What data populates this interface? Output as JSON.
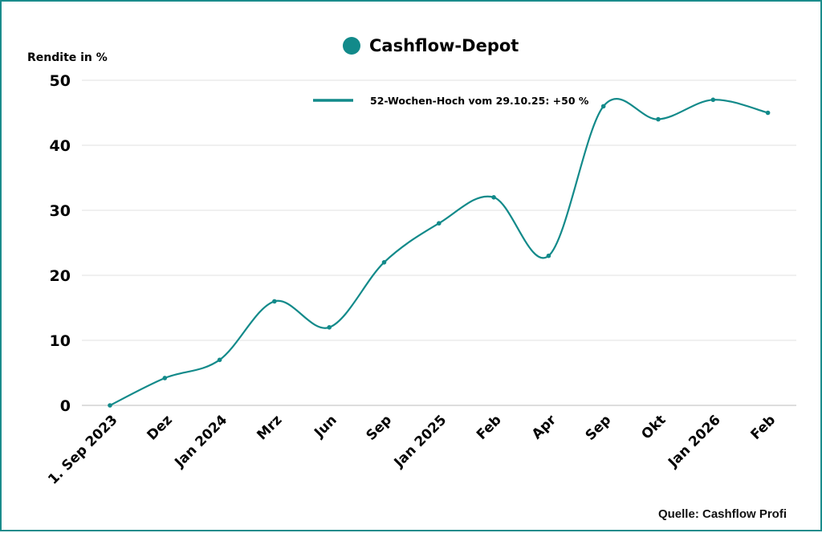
{
  "chart_data": {
    "type": "line",
    "title": "Cashflow-Depot",
    "ylabel": "Rendite in %",
    "xlabel": "",
    "legend": {
      "label": "52-Wochen-Hoch vom 29.10.25: +50 %",
      "placement": "top"
    },
    "categories": [
      "1. Sep 2023",
      "Dez",
      "Jan 2024",
      "Mrz",
      "Jun",
      "Sep",
      "Jan 2025",
      "Feb",
      "Apr",
      "Sep",
      "Okt",
      "Jan 2026",
      "Feb"
    ],
    "values": [
      0,
      4.2,
      7,
      16,
      12,
      22,
      28,
      32,
      23,
      46,
      44,
      47,
      45
    ],
    "ylim": [
      0,
      50
    ],
    "yticks": [
      0,
      10,
      20,
      30,
      40,
      50
    ],
    "grid": true,
    "smooth": true,
    "color": "#128a8a",
    "source": "Quelle: Cashflow Profi"
  }
}
